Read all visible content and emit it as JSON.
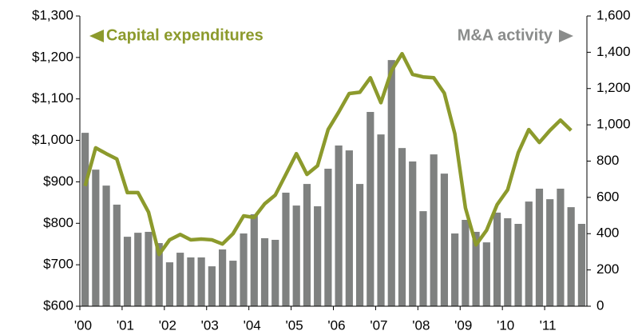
{
  "chart_data": {
    "type": "combo",
    "categories": [
      "'00",
      null,
      null,
      null,
      "'01",
      null,
      null,
      null,
      "'02",
      null,
      null,
      null,
      "'03",
      null,
      null,
      null,
      "'04",
      null,
      null,
      null,
      "'05",
      null,
      null,
      null,
      "'06",
      null,
      null,
      null,
      "'07",
      null,
      null,
      null,
      "'08",
      null,
      null,
      null,
      "'09",
      null,
      null,
      null,
      "'10",
      null,
      null,
      null,
      "'11",
      null,
      null,
      null
    ],
    "series": [
      {
        "name": "Capital expenditures",
        "type": "line",
        "axis": "y",
        "color": "#8c9a2c",
        "values": [
          890,
          982,
          968,
          955,
          874,
          874,
          827,
          725,
          760,
          773,
          760,
          762,
          760,
          750,
          775,
          818,
          814,
          847,
          868,
          918,
          968,
          918,
          939,
          1026,
          1068,
          1113,
          1116,
          1151,
          1091,
          1168,
          1209,
          1159,
          1153,
          1151,
          1114,
          1016,
          837,
          748,
          783,
          845,
          881,
          970,
          1026,
          995,
          1024,
          1049,
          1024,
          null
        ]
      },
      {
        "name": "M&A activity",
        "type": "bar",
        "axis": "y2",
        "color": "#7f8180",
        "values": [
          956,
          753,
          665,
          560,
          383,
          405,
          410,
          348,
          242,
          295,
          269,
          269,
          220,
          313,
          251,
          401,
          507,
          375,
          366,
          626,
          555,
          674,
          551,
          758,
          886,
          859,
          674,
          1071,
          947,
          1357,
          872,
          798,
          524,
          837,
          731,
          401,
          476,
          410,
          352,
          516,
          485,
          454,
          577,
          648,
          590,
          648,
          546,
          454
        ]
      }
    ],
    "ylim": [
      600,
      1300
    ],
    "yticks": [
      {
        "value": 600,
        "label": "$600"
      },
      {
        "value": 700,
        "label": "$700"
      },
      {
        "value": 800,
        "label": "$800"
      },
      {
        "value": 900,
        "label": "$900"
      },
      {
        "value": 1000,
        "label": "$1,000"
      },
      {
        "value": 1100,
        "label": "$1,100"
      },
      {
        "value": 1200,
        "label": "$1,200"
      },
      {
        "value": 1300,
        "label": "$1,300"
      }
    ],
    "y2lim": [
      0,
      1600
    ],
    "y2ticks": [
      0,
      200,
      400,
      600,
      800,
      {
        "value": 1000,
        "label": "1,000"
      },
      {
        "value": 1200,
        "label": "1,200"
      },
      {
        "value": 1400,
        "label": "1,400"
      },
      {
        "value": 1600,
        "label": "1,600"
      }
    ]
  }
}
